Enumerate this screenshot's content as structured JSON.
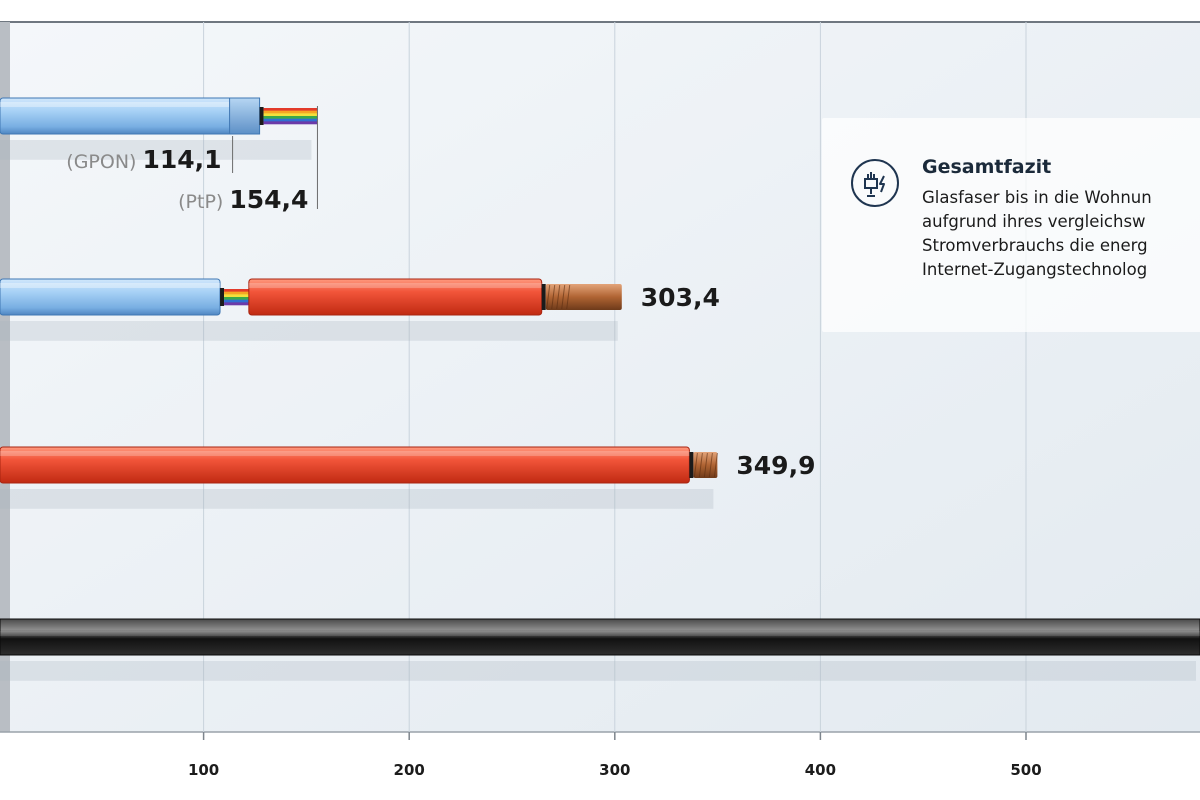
{
  "chart_data": {
    "type": "bar",
    "orientation": "horizontal",
    "title": "",
    "xlabel": "",
    "ylabel": "",
    "xlim": [
      0,
      600
    ],
    "xticks": [
      100,
      200,
      300,
      400,
      500
    ],
    "grid": true,
    "bars": [
      {
        "segments": [
          "fiber"
        ],
        "end": "fiber-strands",
        "values": [
          {
            "tag": "(GPON)",
            "value": 114.1,
            "label": "114,1"
          },
          {
            "tag": "(PtP)",
            "value": 154.4,
            "label": "154,4"
          }
        ]
      },
      {
        "segments": [
          "fiber",
          "copper"
        ],
        "end": "copper-wire",
        "segment_break": 245,
        "values": [
          {
            "tag": "",
            "value": 303.4,
            "label": "303,4"
          }
        ]
      },
      {
        "segments": [
          "copper"
        ],
        "end": "copper-wire",
        "values": [
          {
            "tag": "",
            "value": 349.9,
            "label": "349,9"
          }
        ]
      },
      {
        "segments": [
          "coax"
        ],
        "end": "off-chart",
        "values": []
      }
    ],
    "colors": {
      "fiber": "#8fc1ec",
      "copper_sheath": "#ea4a2e",
      "copper_core": "#b56a3b",
      "coax": "#1c1c1c",
      "grid": "#c9d3dc"
    }
  },
  "info_box": {
    "icon": "fiber-energy-icon",
    "title": "Gesamtfazit",
    "lines": [
      "Glasfaser bis in die Wohnun",
      "aufgrund ihres vergleichsw",
      "Stromverbrauchs die energ",
      "Internet-Zugangstechnolog"
    ]
  }
}
